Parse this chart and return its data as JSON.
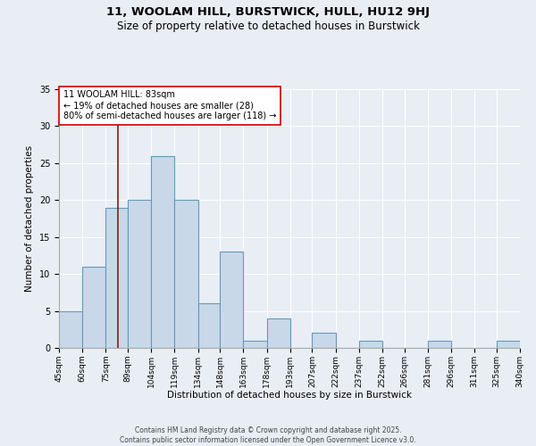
{
  "title1": "11, WOOLAM HILL, BURSTWICK, HULL, HU12 9HJ",
  "title2": "Size of property relative to detached houses in Burstwick",
  "xlabel": "Distribution of detached houses by size in Burstwick",
  "ylabel": "Number of detached properties",
  "bins": [
    45,
    60,
    75,
    89,
    104,
    119,
    134,
    148,
    163,
    178,
    193,
    207,
    222,
    237,
    252,
    266,
    281,
    296,
    311,
    325,
    340
  ],
  "counts": [
    5,
    11,
    19,
    20,
    26,
    20,
    6,
    13,
    1,
    4,
    0,
    2,
    0,
    1,
    0,
    0,
    1,
    0,
    0,
    1
  ],
  "bar_color": "#c8d8e8",
  "bar_edge_color": "#6699bb",
  "bar_linewidth": 0.8,
  "vline_x": 83,
  "vline_color": "#8b1a1a",
  "vline_linewidth": 1.2,
  "annotation_text": "11 WOOLAM HILL: 83sqm\n← 19% of detached houses are smaller (28)\n80% of semi-detached houses are larger (118) →",
  "annotation_box_color": "#ffffff",
  "annotation_box_edge": "#cc0000",
  "ylim": [
    0,
    35
  ],
  "yticks": [
    0,
    5,
    10,
    15,
    20,
    25,
    30,
    35
  ],
  "bg_color": "#e8eef4",
  "grid_color": "#ffffff",
  "footer_text": "Contains HM Land Registry data © Crown copyright and database right 2025.\nContains public sector information licensed under the Open Government Licence v3.0.",
  "tick_labels": [
    "45sqm",
    "60sqm",
    "75sqm",
    "89sqm",
    "104sqm",
    "119sqm",
    "134sqm",
    "148sqm",
    "163sqm",
    "178sqm",
    "193sqm",
    "207sqm",
    "222sqm",
    "237sqm",
    "252sqm",
    "266sqm",
    "281sqm",
    "296sqm",
    "311sqm",
    "325sqm",
    "340sqm"
  ],
  "title1_fontsize": 9.5,
  "title2_fontsize": 8.5,
  "xlabel_fontsize": 7.5,
  "ylabel_fontsize": 7.5,
  "tick_fontsize": 6.5,
  "annotation_fontsize": 7,
  "footer_fontsize": 5.5
}
